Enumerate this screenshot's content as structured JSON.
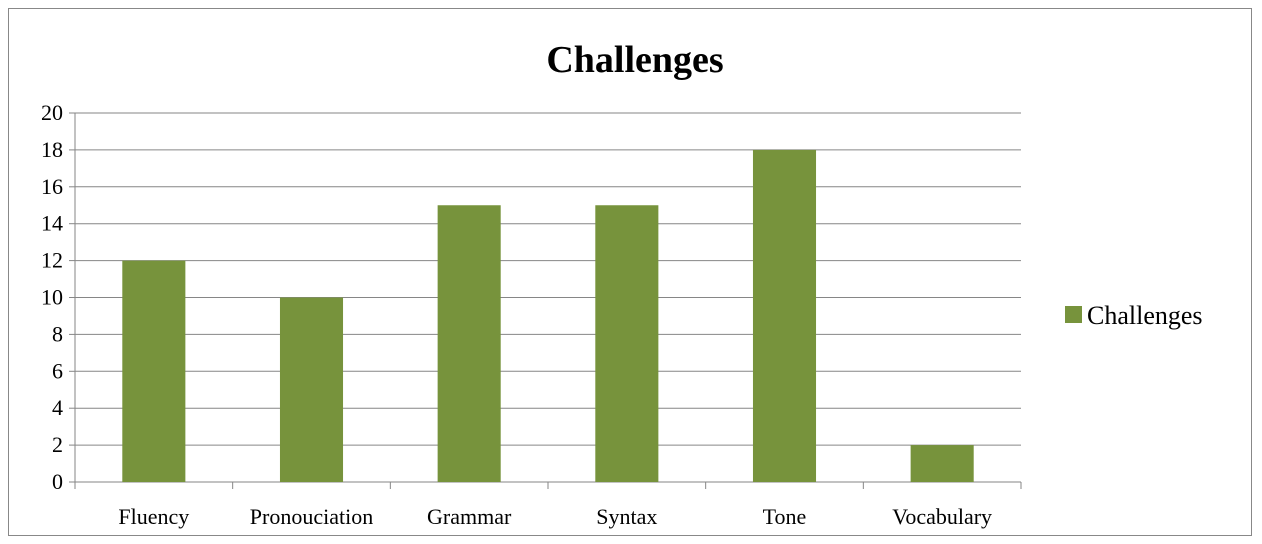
{
  "chart_data": {
    "type": "bar",
    "title": "Challenges",
    "categories": [
      "Fluency",
      "Pronouciation",
      "Grammar",
      "Syntax",
      "Tone",
      "Vocabulary"
    ],
    "series": [
      {
        "name": "Challenges",
        "values": [
          12,
          10,
          15,
          15,
          18,
          2
        ],
        "color": "#77933C"
      }
    ],
    "ylim": [
      0,
      20
    ],
    "yticks": [
      "0",
      "2",
      "4",
      "6",
      "8",
      "10",
      "12",
      "14",
      "16",
      "18",
      "20"
    ],
    "grid": true,
    "legend": "right"
  }
}
